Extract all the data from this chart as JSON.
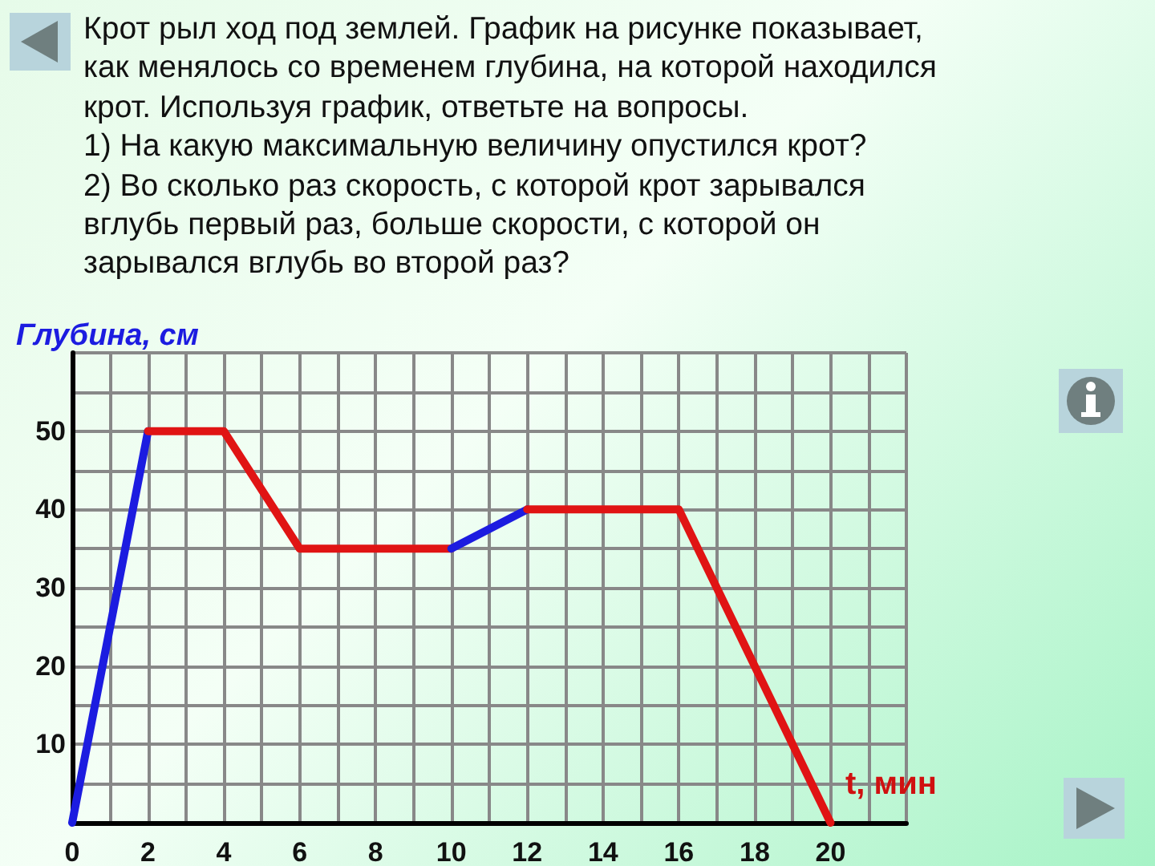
{
  "chart_data": {
    "type": "line",
    "title": "Крот рыл ход под землей. График на рисунке показывает,\nкак менялось со временем глубина, на которой находился\nкрот. Используя график, ответьте на вопросы.\n1) На какую максимальную величину опустился крот?\n2) Во сколько раз скорость, с которой крот зарывался\nвглубь первый раз, больше скорости, с которой он\nзарывался вглубь во второй раз?",
    "xlabel": "t, мин",
    "ylabel": "Глубина, см",
    "series": [
      {
        "color": "#1c1ce0",
        "x": [
          0,
          2
        ],
        "values": [
          0,
          50
        ]
      },
      {
        "color": "#e01414",
        "x": [
          2,
          4,
          6,
          10
        ],
        "values": [
          50,
          50,
          35,
          35
        ]
      },
      {
        "color": "#1c1ce0",
        "x": [
          10,
          12
        ],
        "values": [
          35,
          40
        ]
      },
      {
        "color": "#e01414",
        "x": [
          12,
          16,
          20
        ],
        "values": [
          40,
          40,
          0
        ]
      }
    ],
    "xlim": [
      0,
      22
    ],
    "xticks": [
      0,
      {
        "value": 1,
        "label": null
      },
      2,
      {
        "value": 3,
        "label": null
      },
      4,
      {
        "value": 5,
        "label": null
      },
      6,
      {
        "value": 7,
        "label": null
      },
      8,
      {
        "value": 9,
        "label": null
      },
      10,
      {
        "value": 11,
        "label": null
      },
      12,
      {
        "value": 13,
        "label": null
      },
      14,
      {
        "value": 15,
        "label": null
      },
      16,
      {
        "value": 17,
        "label": null
      },
      18,
      {
        "value": 19,
        "label": null
      },
      20,
      {
        "value": 21,
        "label": null
      },
      {
        "value": 22,
        "label": null
      }
    ],
    "ylim": [
      0,
      60
    ],
    "yticks": [
      {
        "value": 0,
        "label": null
      },
      {
        "value": 5,
        "label": null
      },
      10,
      {
        "value": 15,
        "label": null
      },
      20,
      {
        "value": 25,
        "label": null
      },
      30,
      {
        "value": 35,
        "label": null
      },
      40,
      {
        "value": 45,
        "label": null
      },
      50,
      {
        "value": 55,
        "label": null
      },
      {
        "value": 60,
        "label": null
      }
    ],
    "grid": true,
    "marker": "none",
    "line_style": "solid"
  }
}
